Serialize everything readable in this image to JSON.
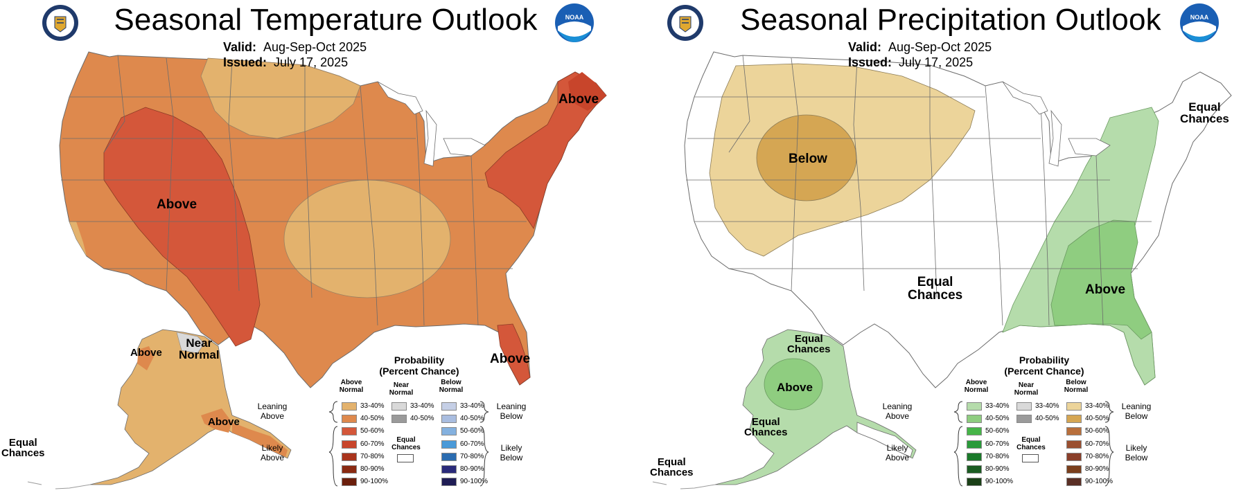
{
  "panels": {
    "temperature": {
      "title": "Seasonal Temperature Outlook",
      "valid_label": "Valid:",
      "valid_value": "Aug-Sep-Oct 2025",
      "issued_label": "Issued:",
      "issued_value": "July 17, 2025",
      "map_labels": {
        "above_west": "Above",
        "above_northeast": "Above",
        "above_florida": "Above",
        "above_alaska_west": "Above",
        "above_alaska_south": "Above",
        "near_normal_line1": "Near",
        "near_normal_line2": "Normal",
        "equal_chances_line1": "Equal",
        "equal_chances_line2": "Chances"
      },
      "colors": {
        "above_33_40": "#e3b26d",
        "above_40_50": "#de894d",
        "above_50_60": "#d4573a",
        "near_normal": "#d9d9d9"
      }
    },
    "precipitation": {
      "title": "Seasonal Precipitation Outlook",
      "valid_label": "Valid:",
      "valid_value": "Aug-Sep-Oct 2025",
      "issued_label": "Issued:",
      "issued_value": "July 17, 2025",
      "map_labels": {
        "below_center": "Below",
        "equal_chances_center_line1": "Equal",
        "equal_chances_center_line2": "Chances",
        "equal_chances_ne_line1": "Equal",
        "equal_chances_ne_line2": "Chances",
        "above_southeast": "Above",
        "above_alaska": "Above",
        "equal_chances_ak_n_line1": "Equal",
        "equal_chances_ak_n_line2": "Chances",
        "equal_chances_ak_se_line1": "Equal",
        "equal_chances_ak_se_line2": "Chances",
        "equal_chances_ak_sw_line1": "Equal",
        "equal_chances_ak_sw_line2": "Chances"
      },
      "colors": {
        "below_33_40": "#ecd49a",
        "below_40_50": "#d5a653",
        "above_33_40": "#b5dcab",
        "above_40_50": "#8fcd80"
      }
    }
  },
  "legend": {
    "title_line1": "Probability",
    "title_line2": "(Percent Chance)",
    "col_above_1": "Above",
    "col_above_2": "Normal",
    "col_near_1": "Near",
    "col_near_2": "Normal",
    "col_below_1": "Below",
    "col_below_2": "Normal",
    "leaning_above_1": "Leaning",
    "leaning_above_2": "Above",
    "likely_above_1": "Likely",
    "likely_above_2": "Above",
    "leaning_below_1": "Leaning",
    "leaning_below_2": "Below",
    "likely_below_1": "Likely",
    "likely_below_2": "Below",
    "equal_chances_1": "Equal",
    "equal_chances_2": "Chances",
    "ranges": [
      "33-40%",
      "40-50%",
      "50-60%",
      "60-70%",
      "70-80%",
      "80-90%",
      "90-100%"
    ],
    "near_ranges": [
      "33-40%",
      "40-50%"
    ],
    "temp_above_colors": [
      "#e3b26d",
      "#de894d",
      "#d4573a",
      "#c8452b",
      "#a9341c",
      "#8a2a12",
      "#6b1f0c"
    ],
    "temp_below_colors": [
      "#c5cfe6",
      "#a9bde0",
      "#84b1df",
      "#4a9ad8",
      "#2b6cb0",
      "#2a2a7a",
      "#1f1d55"
    ],
    "precip_above_colors": [
      "#b5dcab",
      "#8fcd80",
      "#46b548",
      "#2a9a3a",
      "#1b7a2a",
      "#1b5c22",
      "#1a4017"
    ],
    "precip_below_colors": [
      "#ecd49a",
      "#d5a653",
      "#b86f3b",
      "#9a4f30",
      "#8a3f2a",
      "#7a3f1c",
      "#5a2f25"
    ],
    "near_colors": [
      "#d9d9d9",
      "#9a9a9a"
    ]
  }
}
